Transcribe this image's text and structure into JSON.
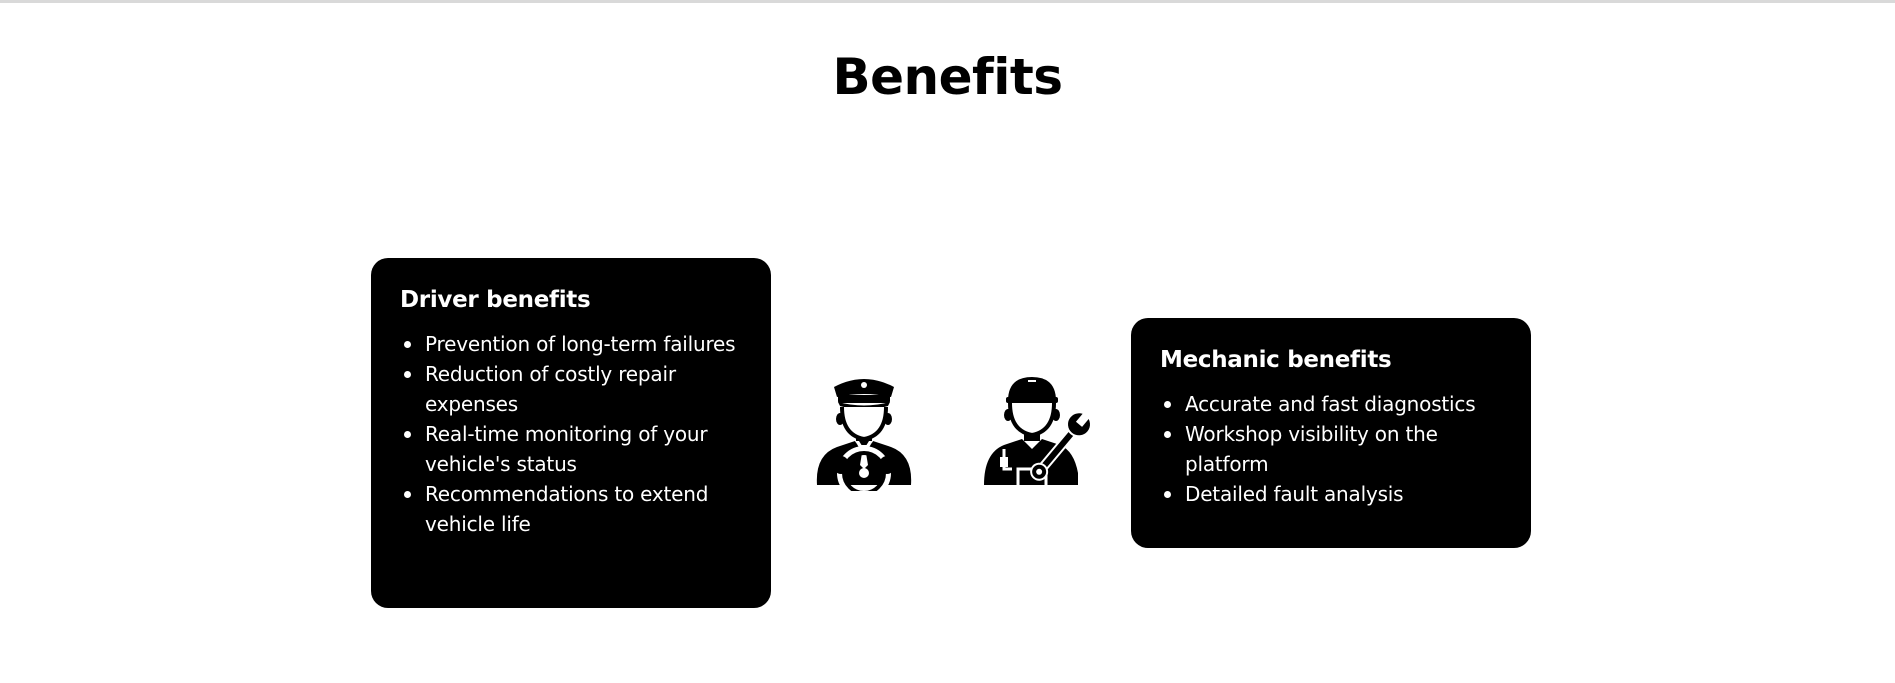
{
  "page": {
    "title": "Benefits"
  },
  "driver": {
    "title": "Driver benefits",
    "icon": "driver-icon",
    "items": [
      "Prevention of long-term failures",
      "Reduction of costly repair expenses",
      "Real-time monitoring of your vehicle's status",
      "Recommendations to extend vehicle life"
    ]
  },
  "mechanic": {
    "title": "Mechanic benefits",
    "icon": "mechanic-icon",
    "items": [
      "Accurate and fast diagnostics",
      "Workshop visibility on the platform",
      "Detailed fault analysis"
    ]
  },
  "colors": {
    "card_background": "#000000",
    "card_text": "#ffffff",
    "page_background": "#ffffff"
  }
}
